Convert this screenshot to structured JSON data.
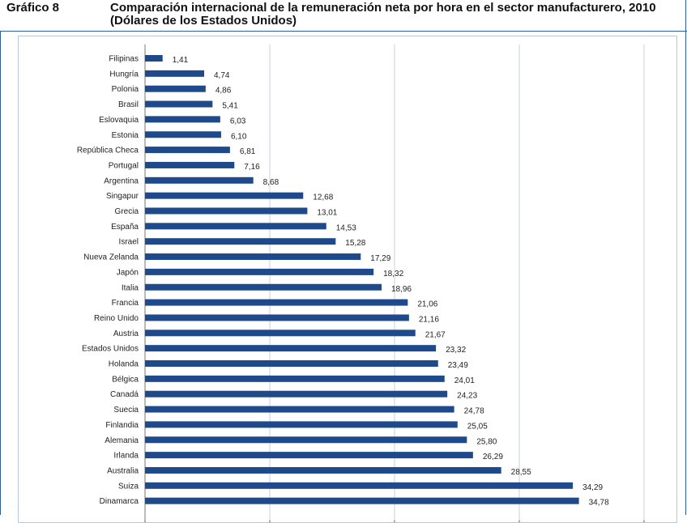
{
  "header": {
    "figure_number": "Gráfico 8",
    "title": "Comparación internacional de la remuneración neta por hora en el sector manufacturero, 2010 (Dólares de los Estados Unidos)"
  },
  "chart_data": {
    "type": "bar",
    "orientation": "horizontal",
    "title": "Comparación internacional de la remuneración neta por hora en el sector manufacturero, 2010 (Dólares de los Estados Unidos)",
    "categories": [
      "Filipinas",
      "Hungría",
      "Polonia",
      "Brasil",
      "Eslovaquia",
      "Estonia",
      "República Checa",
      "Portugal",
      "Argentina",
      "Singapur",
      "Grecia",
      "España",
      "Israel",
      "Nueva Zelanda",
      "Japón",
      "Italia",
      "Francia",
      "Reino Unido",
      "Austria",
      "Estados Unidos",
      "Holanda",
      "Bélgica",
      "Canadá",
      "Suecia",
      "Finlandia",
      "Alemania",
      "Irlanda",
      "Australia",
      "Suiza",
      "Dinamarca"
    ],
    "values": [
      1.41,
      4.74,
      4.86,
      5.41,
      6.03,
      6.1,
      6.81,
      7.16,
      8.68,
      12.68,
      13.01,
      14.53,
      15.28,
      17.29,
      18.32,
      18.96,
      21.06,
      21.16,
      21.67,
      23.32,
      23.49,
      24.01,
      24.23,
      24.78,
      25.05,
      25.8,
      26.29,
      28.55,
      34.29,
      34.78
    ],
    "value_labels": [
      "1,41",
      "4,74",
      "4,86",
      "5,41",
      "6,03",
      "6,10",
      "6,81",
      "7,16",
      "8,68",
      "12,68",
      "13,01",
      "14,53",
      "15,28",
      "17,29",
      "18,32",
      "18,96",
      "21,06",
      "21,16",
      "21,67",
      "23,32",
      "23,49",
      "24,01",
      "24,23",
      "24,78",
      "25,05",
      "25,80",
      "26,29",
      "28,55",
      "34,29",
      "34,78"
    ],
    "xlim": [
      0,
      40
    ],
    "grid": true,
    "bar_color": "#1e4a8c"
  }
}
